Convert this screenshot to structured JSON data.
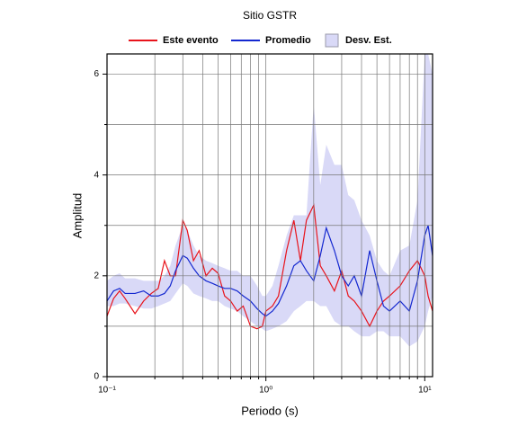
{
  "chart_data": {
    "type": "line",
    "title": "Sitio GSTR",
    "xlabel": "Periodo (s)",
    "ylabel": "Amplitud",
    "xlog": true,
    "grid": true,
    "x": [
      0.1,
      0.11,
      0.12,
      0.13,
      0.15,
      0.17,
      0.19,
      0.21,
      0.23,
      0.25,
      0.27,
      0.3,
      0.32,
      0.35,
      0.38,
      0.42,
      0.46,
      0.5,
      0.55,
      0.6,
      0.66,
      0.72,
      0.8,
      0.88,
      0.95,
      1.0,
      1.1,
      1.2,
      1.35,
      1.5,
      1.65,
      1.8,
      2.0,
      2.2,
      2.4,
      2.7,
      3.0,
      3.3,
      3.6,
      4.0,
      4.5,
      5.0,
      5.5,
      6.0,
      7.0,
      8.0,
      9.0,
      10.0,
      10.5,
      11.2
    ],
    "series": [
      {
        "name": "Este evento",
        "color": "#e8141c",
        "values": [
          1.2,
          1.55,
          1.7,
          1.55,
          1.25,
          1.5,
          1.65,
          1.75,
          2.3,
          2.0,
          2.0,
          3.1,
          2.9,
          2.3,
          2.5,
          2.0,
          2.15,
          2.05,
          1.6,
          1.5,
          1.3,
          1.4,
          1.0,
          0.95,
          1.0,
          1.3,
          1.4,
          1.6,
          2.5,
          3.1,
          2.3,
          3.1,
          3.4,
          2.2,
          2.0,
          1.7,
          2.1,
          1.6,
          1.5,
          1.3,
          1.0,
          1.3,
          1.5,
          1.6,
          1.8,
          2.1,
          2.3,
          2.0,
          1.6,
          1.3
        ]
      },
      {
        "name": "Promedio",
        "color": "#1428d0",
        "values": [
          1.5,
          1.7,
          1.75,
          1.65,
          1.65,
          1.7,
          1.6,
          1.6,
          1.65,
          1.8,
          2.1,
          2.4,
          2.35,
          2.15,
          2.0,
          1.9,
          1.85,
          1.8,
          1.75,
          1.75,
          1.7,
          1.6,
          1.5,
          1.35,
          1.25,
          1.2,
          1.3,
          1.45,
          1.8,
          2.2,
          2.3,
          2.1,
          1.9,
          2.4,
          2.95,
          2.5,
          2.0,
          1.8,
          2.0,
          1.6,
          2.5,
          1.9,
          1.4,
          1.3,
          1.5,
          1.3,
          1.9,
          2.8,
          3.0,
          2.4
        ]
      },
      {
        "name": "Desv. Est.",
        "color": "#d9d9f7",
        "band": true,
        "lower": [
          1.4,
          1.4,
          1.45,
          1.45,
          1.4,
          1.35,
          1.35,
          1.4,
          1.45,
          1.5,
          1.65,
          1.85,
          1.8,
          1.65,
          1.6,
          1.55,
          1.5,
          1.5,
          1.4,
          1.35,
          1.3,
          1.2,
          1.1,
          1.0,
          0.95,
          0.9,
          0.95,
          1.0,
          1.1,
          1.3,
          1.4,
          1.5,
          1.5,
          1.4,
          1.4,
          1.1,
          1.0,
          1.0,
          0.9,
          0.8,
          0.8,
          0.9,
          0.9,
          0.8,
          0.8,
          0.6,
          0.7,
          1.0,
          1.3,
          1.6
        ],
        "upper": [
          1.9,
          2.0,
          2.05,
          1.95,
          1.95,
          1.9,
          1.9,
          1.9,
          2.0,
          2.2,
          2.6,
          3.0,
          2.9,
          2.6,
          2.4,
          2.3,
          2.25,
          2.2,
          2.15,
          2.1,
          2.1,
          2.0,
          2.0,
          1.8,
          1.6,
          1.6,
          1.8,
          2.2,
          2.8,
          3.2,
          3.2,
          3.2,
          5.4,
          3.8,
          4.6,
          4.2,
          4.2,
          3.6,
          3.5,
          3.1,
          2.8,
          2.3,
          2.1,
          2.0,
          2.5,
          2.6,
          3.5,
          6.4,
          6.4,
          6.0
        ]
      }
    ],
    "xlim": [
      0.1,
      11.2
    ],
    "ylim": [
      0,
      6.4
    ],
    "xticks": [
      {
        "value": 0.1,
        "label": "10⁻¹"
      },
      {
        "value": 1,
        "label": "10⁰"
      },
      {
        "value": 10,
        "label": "10¹"
      }
    ],
    "xminor": [
      0.2,
      0.3,
      0.4,
      0.5,
      0.6,
      0.7,
      0.8,
      0.9,
      2,
      3,
      4,
      5,
      6,
      7,
      8,
      9
    ],
    "yticks": [
      0,
      2,
      4,
      6
    ],
    "yminor": [
      1,
      3,
      5
    ]
  }
}
